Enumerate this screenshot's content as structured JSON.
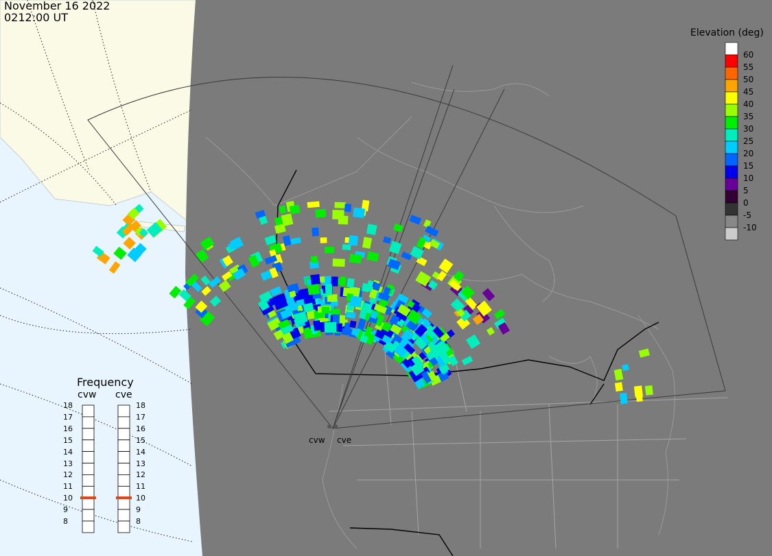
{
  "header": {
    "date": "November 16 2022",
    "time": "0212:00 UT"
  },
  "colorbar": {
    "title": "Elevation (deg)",
    "levels": [
      {
        "label": "60",
        "color": "#ffffff"
      },
      {
        "label": "55",
        "color": "#ff0000"
      },
      {
        "label": "50",
        "color": "#ff6600"
      },
      {
        "label": "45",
        "color": "#ffa500"
      },
      {
        "label": "40",
        "color": "#ffff00"
      },
      {
        "label": "35",
        "color": "#99ff00"
      },
      {
        "label": "30",
        "color": "#00ee00"
      },
      {
        "label": "25",
        "color": "#00eebb"
      },
      {
        "label": "20",
        "color": "#00ccff"
      },
      {
        "label": "15",
        "color": "#0066ff"
      },
      {
        "label": "10",
        "color": "#0000ee"
      },
      {
        "label": "5",
        "color": "#660099"
      },
      {
        "label": "0",
        "color": "#330033"
      },
      {
        "label": "-5",
        "color": "#333333"
      },
      {
        "label": "-10",
        "color": "#888888"
      },
      {
        "label": "",
        "color": "#cccccc"
      }
    ]
  },
  "frequency": {
    "title": "Frequency",
    "radars": [
      {
        "id": "cvw",
        "label": "cvw",
        "value": 10.5
      },
      {
        "id": "cve",
        "label": "cve",
        "value": 10.5
      }
    ],
    "ticks": [
      "18",
      "17",
      "16",
      "15",
      "14",
      "13",
      "12",
      "11",
      "10",
      "9",
      "8"
    ],
    "indicator_color": "#dd4411"
  },
  "sites": [
    {
      "id": "cvw",
      "label": "cvw"
    },
    {
      "id": "cve",
      "label": "cve"
    }
  ],
  "map_colors": {
    "ocean": "#e8f5ff",
    "land": "#fafae6",
    "night": "#7b7b7b",
    "boundary": "#000000"
  }
}
